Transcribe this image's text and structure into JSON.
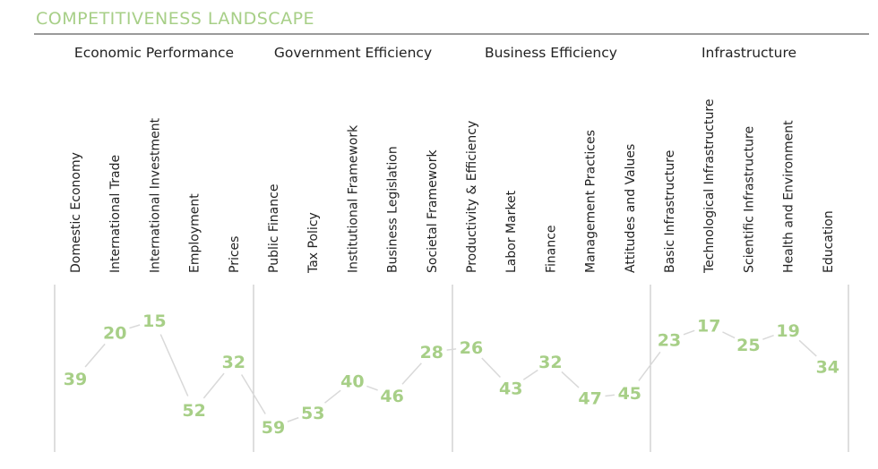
{
  "header": {
    "title": "COMPETITIVENESS LANDSCAPE"
  },
  "colors": {
    "accent": "#a7cf87",
    "line": "#d9d9d9",
    "separator": "#c8c8c8",
    "text": "#222222"
  },
  "chart_data": {
    "type": "line",
    "groups": [
      {
        "name": "Economic Performance",
        "categories": [
          "Domestic Economy",
          "International Trade",
          "International Investment",
          "Employment",
          "Prices"
        ]
      },
      {
        "name": "Government Efficiency",
        "categories": [
          "Public Finance",
          "Tax Policy",
          "Institutional Framework",
          "Business Legislation",
          "Societal Framework"
        ]
      },
      {
        "name": "Business Efficiency",
        "categories": [
          "Productivity & Efficiency",
          "Labor Market",
          "Finance",
          "Management Practices",
          "Attitudes and Values"
        ]
      },
      {
        "name": "Infrastructure",
        "categories": [
          "Basic Infrastructure",
          "Technological Infrastructure",
          "Scientific Infrastructure",
          "Health and Environment",
          "Education"
        ]
      }
    ],
    "categories": [
      "Domestic Economy",
      "International Trade",
      "International Investment",
      "Employment",
      "Prices",
      "Public Finance",
      "Tax Policy",
      "Institutional Framework",
      "Business Legislation",
      "Societal Framework",
      "Productivity & Efficiency",
      "Labor Market",
      "Finance",
      "Management Practices",
      "Attitudes and Values",
      "Basic Infrastructure",
      "Technological Infrastructure",
      "Scientific Infrastructure",
      "Health and Environment",
      "Education"
    ],
    "values": [
      39,
      20,
      15,
      52,
      32,
      59,
      53,
      40,
      46,
      28,
      26,
      43,
      32,
      47,
      45,
      23,
      17,
      25,
      19,
      34
    ],
    "inverted": true,
    "grid": false
  }
}
